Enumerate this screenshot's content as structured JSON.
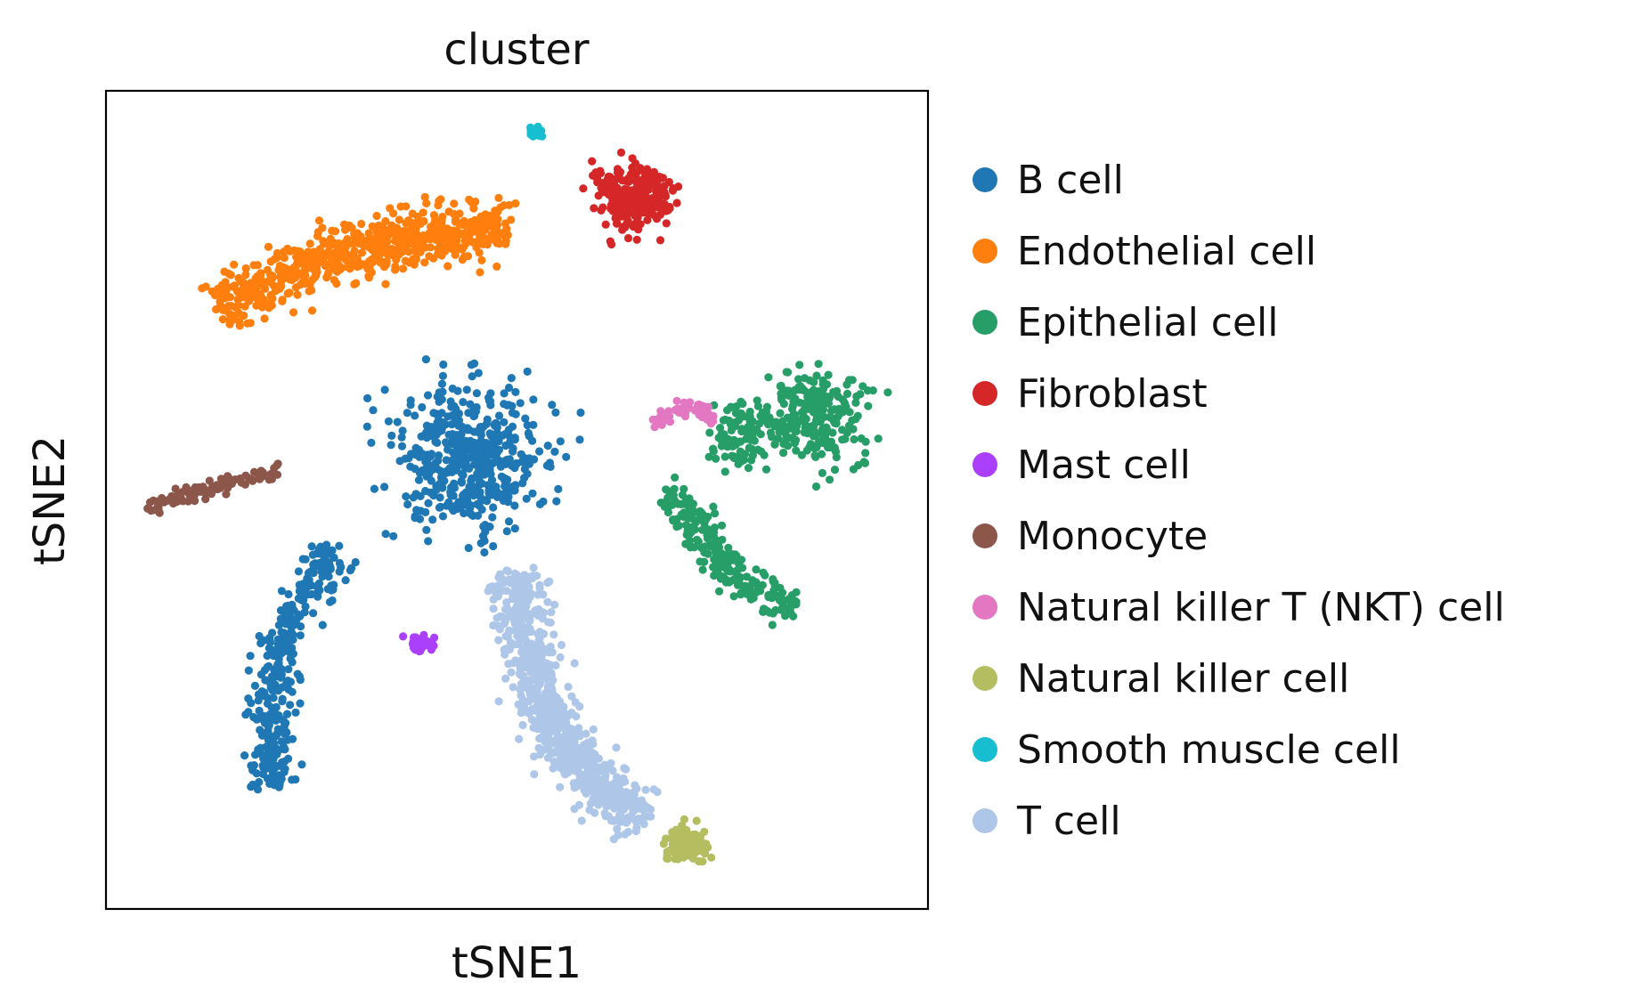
{
  "chart_data": {
    "type": "scatter",
    "title": "cluster",
    "xlabel": "tSNE1",
    "ylabel": "tSNE2",
    "xlim": [
      0,
      100
    ],
    "ylim": [
      0,
      100
    ],
    "grid": false,
    "ticks": false,
    "legend": "right",
    "series": [
      {
        "name": "B cell",
        "color": "#1f77b4",
        "clusters": [
          {
            "cx": 44.0,
            "cy": 55.0,
            "sx": 8.5,
            "sy": 8.0,
            "n": 480
          },
          {
            "cx": 20.5,
            "cy": 29.0,
            "path": [
              [
                28.0,
                44.0
              ],
              [
                24.0,
                38.0
              ],
              [
                21.0,
                31.0
              ],
              [
                20.0,
                24.0
              ],
              [
                20.5,
                15.0
              ]
            ],
            "width": 2.8,
            "n": 340
          }
        ]
      },
      {
        "name": "Endothelial cell",
        "color": "#ff7f0e",
        "clusters": [
          {
            "cx": 31.0,
            "cy": 78.0,
            "path": [
              [
                14.0,
                73.0
              ],
              [
                22.0,
                78.0
              ],
              [
                32.0,
                81.0
              ],
              [
                42.0,
                83.0
              ],
              [
                49.0,
                83.5
              ]
            ],
            "width": 3.8,
            "n": 640
          }
        ]
      },
      {
        "name": "Epithelial cell",
        "color": "#279e68",
        "clusters": [
          {
            "cx": 86.0,
            "cy": 60.0,
            "sx": 6.0,
            "sy": 5.0,
            "n": 240
          },
          {
            "cx": 76.0,
            "cy": 51.0,
            "path": [
              [
                68.0,
                51.0
              ],
              [
                72.0,
                47.0
              ],
              [
                75.0,
                42.0
              ],
              [
                80.0,
                38.0
              ],
              [
                84.0,
                37.0
              ]
            ],
            "width": 2.4,
            "n": 230
          },
          {
            "cx": 77.0,
            "cy": 58.0,
            "sx": 3.0,
            "sy": 4.0,
            "n": 90
          }
        ]
      },
      {
        "name": "Fibroblast",
        "color": "#d62728",
        "clusters": [
          {
            "cx": 64.0,
            "cy": 87.0,
            "sx": 4.0,
            "sy": 3.5,
            "n": 260
          }
        ]
      },
      {
        "name": "Mast cell",
        "color": "#aa40fc",
        "clusters": [
          {
            "cx": 38.5,
            "cy": 32.5,
            "sx": 2.0,
            "sy": 1.0,
            "n": 45
          }
        ]
      },
      {
        "name": "Monocyte",
        "color": "#8c564b",
        "clusters": [
          {
            "cx": 12.5,
            "cy": 51.5,
            "path": [
              [
                5.0,
                49.0
              ],
              [
                12.5,
                51.5
              ],
              [
                21.0,
                53.5
              ]
            ],
            "width": 0.6,
            "n": 110
          }
        ]
      },
      {
        "name": "Natural killer T (NKT) cell",
        "color": "#e377c2",
        "clusters": [
          {
            "cx": 70.5,
            "cy": 60.0,
            "path": [
              [
                66.5,
                59.0
              ],
              [
                69.0,
                61.0
              ],
              [
                72.0,
                61.3
              ],
              [
                74.0,
                59.5
              ]
            ],
            "width": 0.7,
            "n": 70
          }
        ]
      },
      {
        "name": "Natural killer cell",
        "color": "#b5bd61",
        "clusters": [
          {
            "cx": 71.0,
            "cy": 8.0,
            "sx": 2.4,
            "sy": 2.0,
            "n": 110
          }
        ]
      },
      {
        "name": "Smooth muscle cell",
        "color": "#17becf",
        "clusters": [
          {
            "cx": 52.5,
            "cy": 95.0,
            "sx": 1.0,
            "sy": 0.8,
            "n": 22
          }
        ]
      },
      {
        "name": "T cell",
        "color": "#aec7e8",
        "clusters": [
          {
            "cx": 55.0,
            "cy": 27.0,
            "path": [
              [
                50.0,
                41.0
              ],
              [
                51.5,
                31.0
              ],
              [
                54.0,
                22.0
              ],
              [
                59.0,
                15.5
              ],
              [
                65.5,
                11.0
              ]
            ],
            "width": 3.6,
            "n": 720
          }
        ]
      }
    ]
  }
}
